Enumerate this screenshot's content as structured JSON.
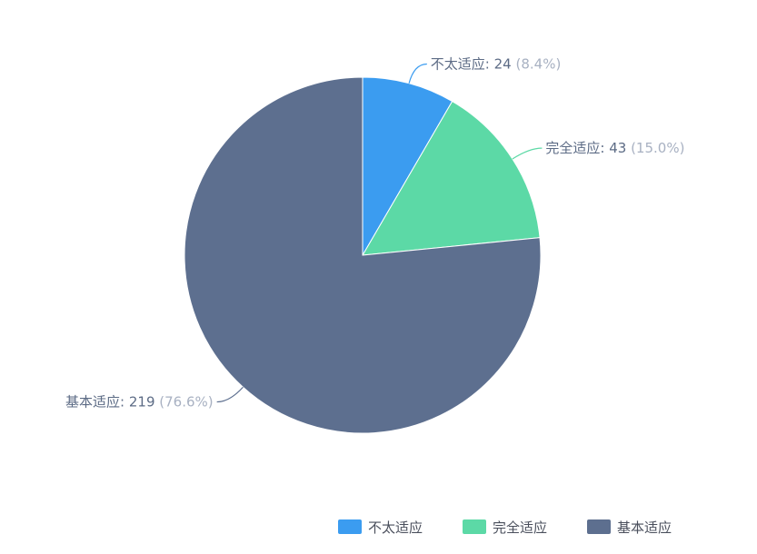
{
  "chart_data": {
    "type": "pie",
    "title": "",
    "start_angle": "top-clockwise",
    "legend_position": "bottom-right",
    "slices": [
      {
        "name": "不太适应",
        "value": 24,
        "percent_label": "(8.4%)",
        "color": "#3b9cf0"
      },
      {
        "name": "完全适应",
        "value": 43,
        "percent_label": "(15.0%)",
        "color": "#5cd9a6"
      },
      {
        "name": "基本适应",
        "value": 219,
        "percent_label": "(76.6%)",
        "color": "#5d6f8f"
      }
    ]
  }
}
